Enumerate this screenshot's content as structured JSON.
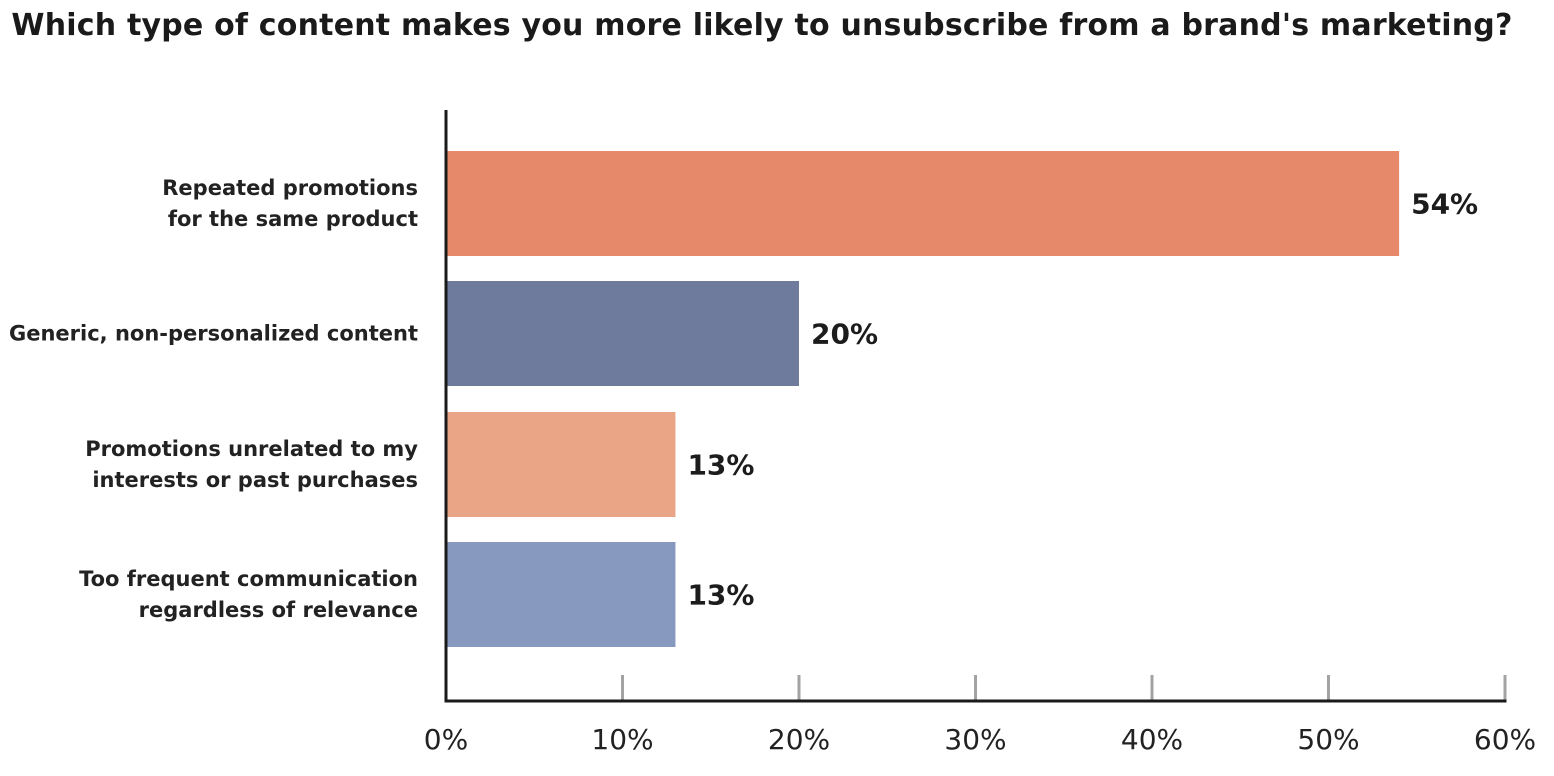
{
  "chart_data": {
    "type": "bar",
    "orientation": "horizontal",
    "title": "Which type of content makes you more likely to unsubscribe from a brand's marketing?",
    "categories": [
      [
        "Repeated promotions",
        "for the same product"
      ],
      [
        "Generic, non-personalized content"
      ],
      [
        "Promotions unrelated to my",
        "interests or past purchases"
      ],
      [
        "Too frequent communication",
        "regardless of relevance"
      ]
    ],
    "values": [
      54,
      20,
      13,
      13
    ],
    "value_labels": [
      "54%",
      "20%",
      "13%",
      "13%"
    ],
    "colors": [
      "#e6896b",
      "#6f7b9c",
      "#eaa587",
      "#8899c0"
    ],
    "xlim": [
      0,
      60
    ],
    "x_ticks": [
      0,
      10,
      20,
      30,
      40,
      50,
      60
    ],
    "x_tick_labels": [
      "0%",
      "10%",
      "20%",
      "30%",
      "40%",
      "50%",
      "60%"
    ],
    "grid": false,
    "axis_color": "#1a1a1a",
    "tick_color": "#a3a3a3"
  }
}
